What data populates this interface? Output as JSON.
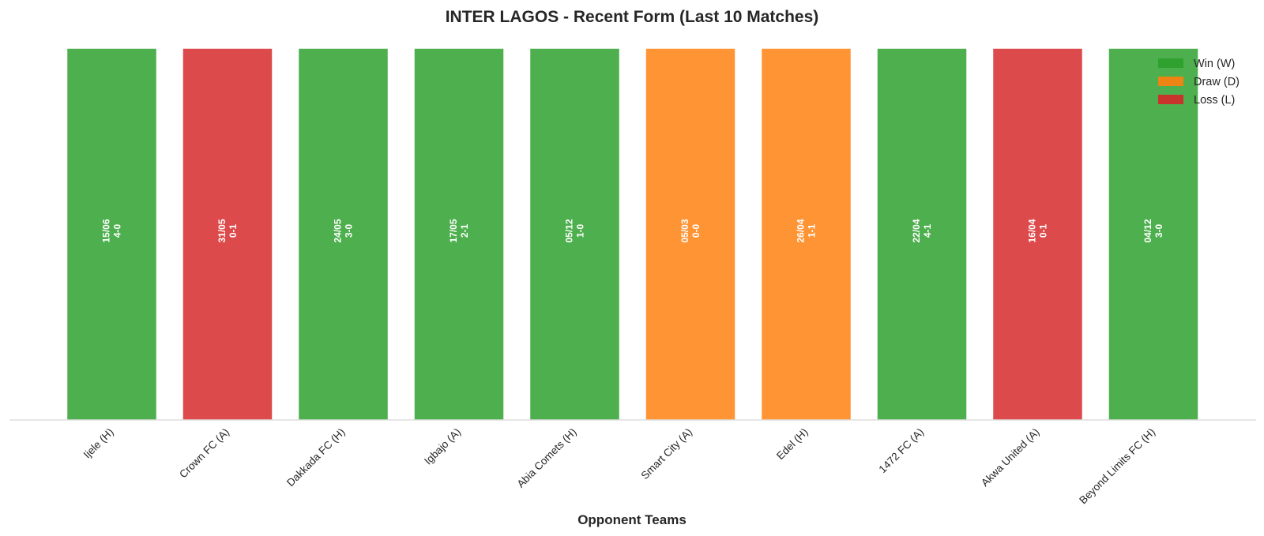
{
  "chart_data": {
    "type": "bar",
    "title": "INTER LAGOS - Recent Form (Last 10 Matches)",
    "xlabel": "Opponent Teams",
    "ylabel": "",
    "ylim": [
      0,
      1
    ],
    "grid": false,
    "legend_position": "top-right",
    "categories": [
      "Ijele (H)",
      "Crown FC (A)",
      "Dakkada FC (H)",
      "Igbajo (A)",
      "Abia Comets (H)",
      "Smart City (A)",
      "Edel (H)",
      "1472 FC (A)",
      "Akwa United (A)",
      "Beyond Limits FC (H)"
    ],
    "values": [
      1,
      1,
      1,
      1,
      1,
      1,
      1,
      1,
      1,
      1
    ],
    "results": [
      "W",
      "L",
      "W",
      "W",
      "W",
      "D",
      "D",
      "W",
      "L",
      "W"
    ],
    "dates": [
      "15/06",
      "31/05",
      "24/05",
      "17/05",
      "05/12",
      "05/03",
      "26/04",
      "22/04",
      "16/04",
      "04/12"
    ],
    "scores": [
      "4-0",
      "0-1",
      "3-0",
      "2-1",
      "1-0",
      "0-0",
      "1-1",
      "4-1",
      "0-1",
      "3-0"
    ],
    "legend": [
      {
        "key": "W",
        "label": "Win (W)",
        "color": "#2ca02c"
      },
      {
        "key": "D",
        "label": "Draw (D)",
        "color": "#ff7f0e"
      },
      {
        "key": "L",
        "label": "Loss (L)",
        "color": "#d62728"
      }
    ]
  }
}
